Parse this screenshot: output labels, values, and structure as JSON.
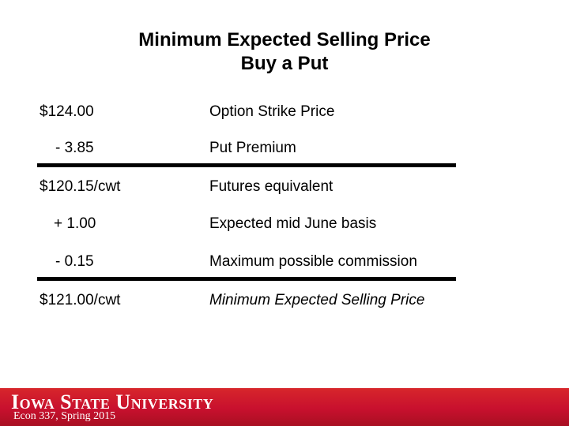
{
  "title": {
    "line1": "Minimum Expected Selling Price",
    "line2": "Buy a Put"
  },
  "rows": [
    {
      "amount": "$124.00",
      "description": "Option Strike Price"
    },
    {
      "amount": "- 3.85",
      "description": "Put Premium"
    },
    {
      "amount": "$120.15/cwt",
      "description": "Futures equivalent"
    },
    {
      "amount": "+ 1.00",
      "description": "Expected mid June basis"
    },
    {
      "amount": "- 0.15",
      "description": "Maximum possible commission"
    },
    {
      "amount": "$121.00/cwt",
      "description": "Minimum Expected Selling Price"
    }
  ],
  "footer": {
    "logo_text": "Iowa State University",
    "course": "Econ 337, Spring 2015"
  },
  "colors": {
    "footer_bar": "#c8102e",
    "rule": "#000000"
  }
}
